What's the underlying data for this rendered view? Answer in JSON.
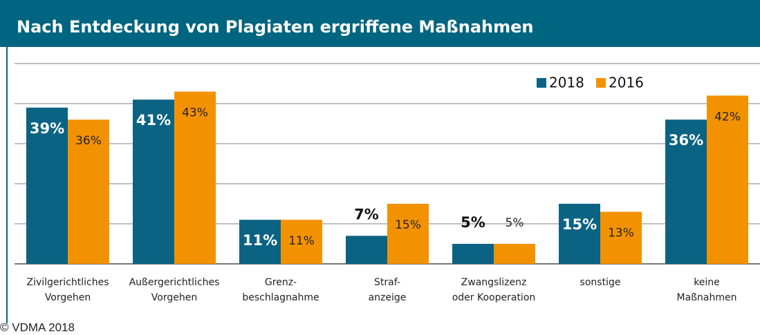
{
  "chart_data": {
    "type": "bar",
    "title": "Nach Entdeckung von Plagiaten ergriffene Maßnahmen",
    "categories": [
      [
        "Zivilgerichtliches",
        "Vorgehen"
      ],
      [
        "Außergerichtliches",
        "Vorgehen"
      ],
      [
        "Grenz-",
        "beschlagnahme"
      ],
      [
        "Straf-",
        "anzeige"
      ],
      [
        "Zwangslizenz",
        "oder Kooperation"
      ],
      [
        "sonstige"
      ],
      [
        "keine",
        "Maßnahmen"
      ]
    ],
    "series": [
      {
        "name": "2018",
        "color": "#0b6383",
        "values": [
          39,
          41,
          11,
          7,
          5,
          15,
          36
        ],
        "value_labels": [
          "39%",
          "41%",
          "11%",
          "7%",
          "5%",
          "15%",
          "36%"
        ]
      },
      {
        "name": "2016",
        "color": "#f39200",
        "values": [
          36,
          43,
          11,
          15,
          5,
          13,
          42
        ],
        "value_labels": [
          "36%",
          "43%",
          "11%",
          "15%",
          "5%",
          "13%",
          "42%"
        ]
      }
    ],
    "ylim": [
      0,
      50
    ],
    "yticks": [
      0,
      10,
      20,
      30,
      40,
      50
    ],
    "grid": true,
    "legend": "top-right",
    "source": "© VDMA 2018"
  }
}
